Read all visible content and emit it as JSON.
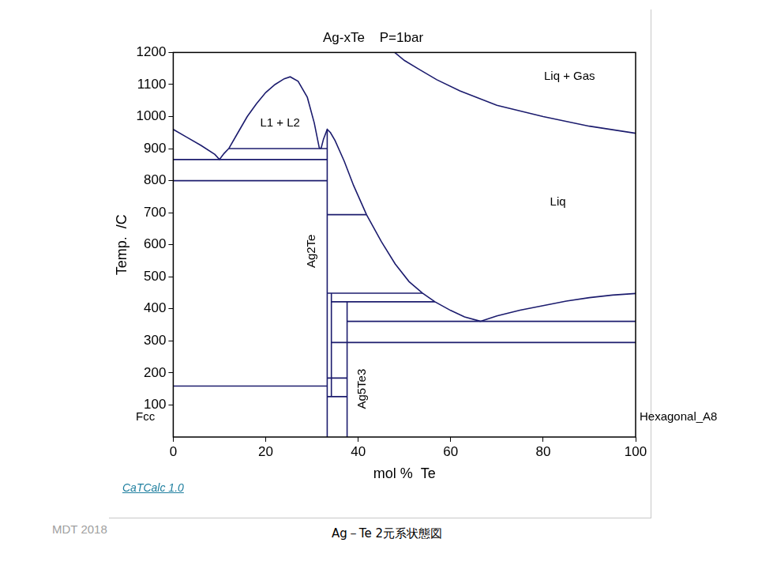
{
  "chart_data": {
    "type": "line",
    "title": "Ag-xTe    P=1bar",
    "x_label": "mol %  Te",
    "y_label": "Temp.  /C",
    "xlim": [
      0,
      100
    ],
    "ylim": [
      0,
      1200
    ],
    "xticks": [
      0,
      20,
      40,
      60,
      80,
      100
    ],
    "yticks": [
      100,
      200,
      300,
      400,
      500,
      600,
      700,
      800,
      900,
      1000,
      1100,
      1200
    ],
    "grid": false,
    "color": "#1c1c6e",
    "series": [
      {
        "x": [
          0,
          3,
          6,
          9,
          10,
          11,
          12
        ],
        "y": [
          960,
          935,
          910,
          882,
          866,
          885,
          900
        ]
      },
      {
        "x": [
          12,
          14,
          16,
          18,
          20,
          22,
          24,
          25.3,
          27,
          29,
          30.5,
          31.6
        ],
        "y": [
          900,
          950,
          1000,
          1040,
          1075,
          1100,
          1118,
          1124,
          1110,
          1060,
          980,
          901
        ]
      },
      {
        "x": [
          31.6,
          32,
          32.5,
          33.3,
          34,
          35,
          37,
          39,
          41.8,
          45,
          48,
          51,
          53.9,
          56.6,
          60,
          63,
          66.5
        ],
        "y": [
          901,
          902,
          930,
          960,
          950,
          925,
          860,
          785,
          694,
          610,
          540,
          485,
          449,
          422,
          395,
          375,
          361
        ]
      },
      {
        "x": [
          66.5,
          70,
          75,
          80,
          85,
          90,
          95,
          100
        ],
        "y": [
          361,
          378,
          396,
          410,
          424,
          435,
          443,
          448
        ]
      },
      {
        "x": [
          47.9,
          50,
          53,
          57,
          62,
          70,
          80,
          90,
          100
        ],
        "y": [
          1200,
          1175,
          1149,
          1115,
          1080,
          1035,
          1000,
          970,
          948
        ]
      },
      {
        "x": [
          12,
          33.3
        ],
        "y": [
          900,
          900
        ]
      },
      {
        "x": [
          0,
          33.3
        ],
        "y": [
          866,
          866
        ]
      },
      {
        "x": [
          0,
          33.3
        ],
        "y": [
          800,
          800
        ]
      },
      {
        "x": [
          0,
          33.3
        ],
        "y": [
          159,
          159
        ]
      },
      {
        "x": [
          33.3,
          41.8
        ],
        "y": [
          694,
          694
        ]
      },
      {
        "x": [
          33.3,
          53.9
        ],
        "y": [
          449,
          449
        ]
      },
      {
        "x": [
          34.2,
          56.6
        ],
        "y": [
          422,
          422
        ]
      },
      {
        "x": [
          37.6,
          100
        ],
        "y": [
          361,
          361
        ]
      },
      {
        "x": [
          34.2,
          100
        ],
        "y": [
          295,
          295
        ]
      },
      {
        "x": [
          33.3,
          37.6
        ],
        "y": [
          184,
          184
        ]
      },
      {
        "x": [
          33.3,
          37.6
        ],
        "y": [
          126,
          126
        ]
      },
      {
        "x": [
          33.3,
          33.3
        ],
        "y": [
          0,
          960
        ]
      },
      {
        "x": [
          34.2,
          34.2
        ],
        "y": [
          126,
          449
        ]
      },
      {
        "x": [
          37.6,
          37.6
        ],
        "y": [
          0,
          422
        ]
      }
    ],
    "annotations": [
      {
        "text": "L1 + L2",
        "x": 23.1,
        "y": 980
      },
      {
        "text": "Liq + Gas",
        "x": 85.7,
        "y": 1124
      },
      {
        "text": "Liq",
        "x": 83.2,
        "y": 733
      }
    ],
    "phase_labels": [
      {
        "text": "Ag2Te",
        "x": 30,
        "y": 580
      },
      {
        "text": "Ag5Te3",
        "x": 40.9,
        "y": 150
      }
    ],
    "left_phase": "Fcc",
    "right_phase": "Hexagonal_A8"
  },
  "source": "CaTCalc 1.0",
  "credit": "MDT  2018",
  "caption": "Ag－Te  2元系状態図"
}
